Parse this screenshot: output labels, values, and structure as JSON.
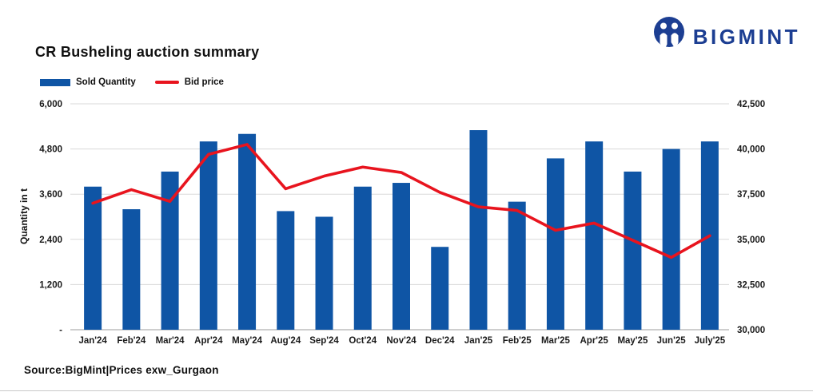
{
  "header": {
    "title": "CR Busheling auction summary",
    "logo_text": "BIGMINT",
    "logo_color": "#1c3e92"
  },
  "legend": [
    {
      "label": "Sold Quantity",
      "type": "bar",
      "color": "#0f55a5"
    },
    {
      "label": "Bid price",
      "type": "line",
      "color": "#e8141e"
    }
  ],
  "chart_data": {
    "type": "bar",
    "title": "CR Busheling auction summary",
    "categories": [
      "Jan'24",
      "Feb'24",
      "Mar'24",
      "Apr'24",
      "May'24",
      "Aug'24",
      "Sep'24",
      "Oct'24",
      "Nov'24",
      "Dec'24",
      "Jan'25",
      "Feb'25",
      "Mar'25",
      "Apr'25",
      "May'25",
      "Jun'25",
      "July'25"
    ],
    "series": [
      {
        "name": "Sold Quantity",
        "type": "bar",
        "axis": "left",
        "color": "#0f55a5",
        "values": [
          3800,
          3200,
          4200,
          5000,
          5200,
          3150,
          3000,
          3800,
          3900,
          2200,
          5300,
          3400,
          4550,
          5000,
          4200,
          4800,
          5000
        ]
      },
      {
        "name": "Bid price",
        "type": "line",
        "axis": "right",
        "color": "#e8141e",
        "values": [
          37000,
          37750,
          37100,
          39700,
          40250,
          37800,
          38500,
          39000,
          38700,
          37600,
          36800,
          36600,
          35500,
          35900,
          34950,
          34000,
          35200
        ]
      }
    ],
    "left_axis": {
      "title": "Quantity in t",
      "min": 0,
      "max": 6000,
      "tick_values": [
        6000,
        4800,
        3600,
        2400,
        1200,
        0
      ],
      "tick_labels": [
        "6,000",
        "4,800",
        "3,600",
        "2,400",
        "1,200",
        "-"
      ]
    },
    "right_axis": {
      "min": 30000,
      "max": 42500,
      "tick_values": [
        42500,
        40000,
        37500,
        35000,
        32500,
        30000
      ],
      "tick_labels": [
        "42,500",
        "40,000",
        "37,500",
        "35,000",
        "32,500",
        "30,000"
      ]
    },
    "grid": true,
    "grid_color": "#d9d9d9",
    "baseline_color": "#bdbdbd",
    "legend_position": "top-left"
  },
  "footer": {
    "source": "Source:BigMint|Prices exw_Gurgaon"
  }
}
